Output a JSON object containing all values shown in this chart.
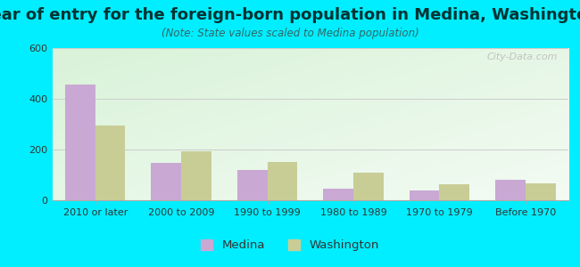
{
  "title": "Year of entry for the foreign-born population in Medina, Washington",
  "subtitle": "(Note: State values scaled to Medina population)",
  "categories": [
    "2010 or later",
    "2000 to 2009",
    "1990 to 1999",
    "1980 to 1989",
    "1970 to 1979",
    "Before 1970"
  ],
  "medina_values": [
    455,
    148,
    120,
    45,
    40,
    82
  ],
  "washington_values": [
    295,
    192,
    152,
    108,
    62,
    68
  ],
  "medina_color": "#c9a8d4",
  "washington_color": "#c8cd96",
  "bg_outer": "#00eeff",
  "ylim": [
    0,
    600
  ],
  "yticks": [
    0,
    200,
    400,
    600
  ],
  "title_fontsize": 13,
  "subtitle_fontsize": 8.5,
  "tick_fontsize": 8,
  "legend_fontsize": 9.5,
  "bar_width": 0.35,
  "watermark": "City-Data.com"
}
